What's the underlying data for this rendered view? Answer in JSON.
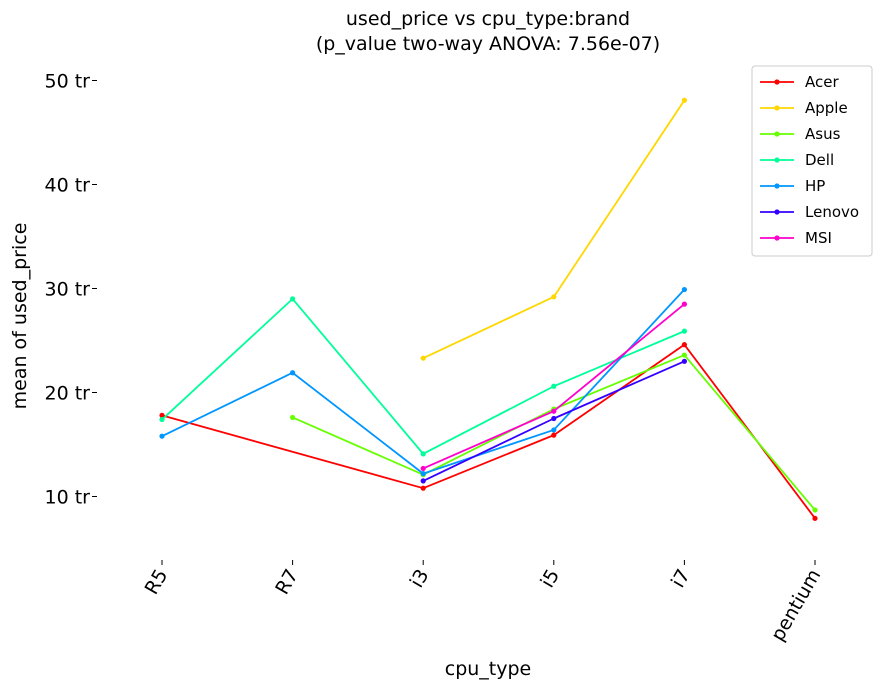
{
  "chart_data": {
    "type": "line",
    "title": "used_price vs cpu_type:brand",
    "subtitle": "(p_value two-way ANOVA: 7.56e-07)",
    "xlabel": "cpu_type",
    "ylabel": "mean of used_price",
    "categories": [
      "R5",
      "R7",
      "i3",
      "i5",
      "i7",
      "pentium"
    ],
    "y_ticks": [
      10,
      20,
      30,
      40,
      50
    ],
    "y_tick_labels": [
      "10 tr",
      "20 tr",
      "30 tr",
      "40 tr",
      "50 tr"
    ],
    "ylim": [
      4,
      52
    ],
    "grid": false,
    "legend_position": "top-right",
    "series": [
      {
        "name": "Acer",
        "color": "#ff0000",
        "values": [
          17.8,
          null,
          10.8,
          15.9,
          24.6,
          7.9
        ]
      },
      {
        "name": "Apple",
        "color": "#ffd700",
        "values": [
          null,
          null,
          23.3,
          29.2,
          48.1,
          null
        ]
      },
      {
        "name": "Asus",
        "color": "#66ff00",
        "values": [
          null,
          17.6,
          12.1,
          18.4,
          23.6,
          8.7
        ]
      },
      {
        "name": "Dell",
        "color": "#00ff99",
        "values": [
          17.4,
          29.0,
          14.1,
          20.6,
          25.9,
          null
        ]
      },
      {
        "name": "HP",
        "color": "#0096ff",
        "values": [
          15.8,
          21.9,
          12.2,
          16.4,
          29.9,
          null
        ]
      },
      {
        "name": "Lenovo",
        "color": "#3300ff",
        "values": [
          null,
          null,
          11.5,
          17.5,
          23.0,
          null
        ]
      },
      {
        "name": "MSI",
        "color": "#ff00cc",
        "values": [
          null,
          null,
          12.7,
          18.2,
          28.5,
          null
        ]
      }
    ]
  }
}
